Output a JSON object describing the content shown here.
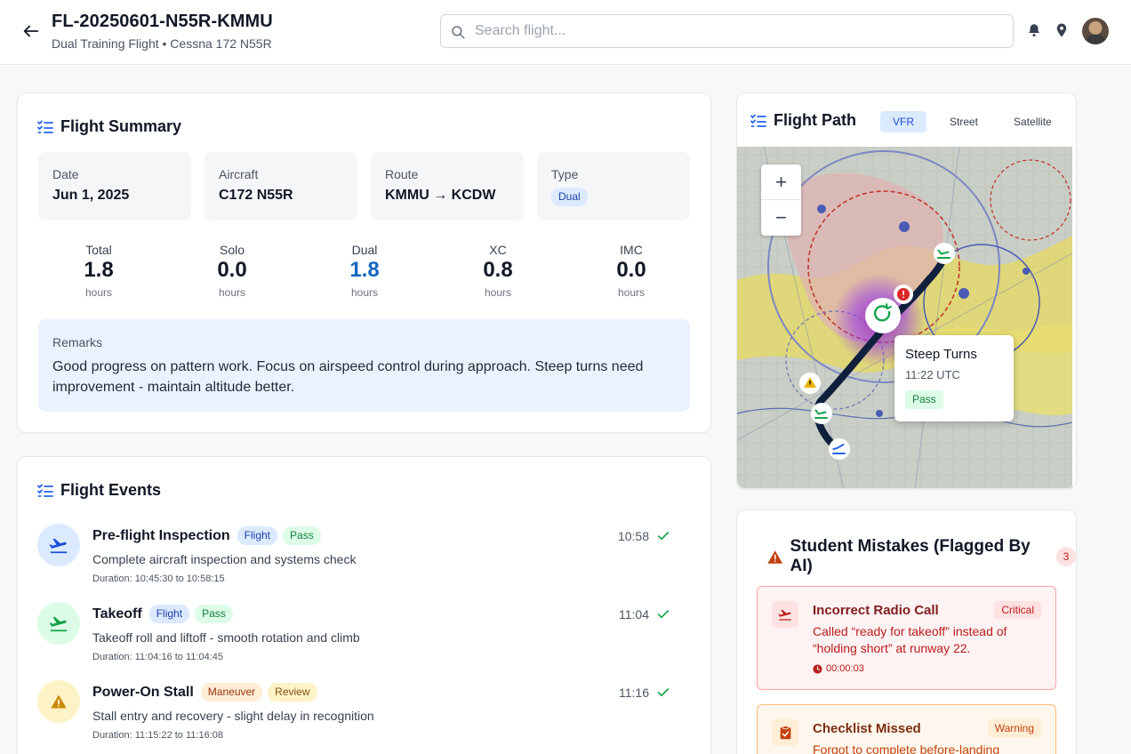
{
  "header": {
    "title": "FL-20250601-N55R-KMMU",
    "subtitle": "Dual Training Flight • Cessna 172 N55R",
    "search_placeholder": "Search flight..."
  },
  "summary": {
    "title": "Flight Summary",
    "info": [
      {
        "label": "Date",
        "value": "Jun 1, 2025"
      },
      {
        "label": "Aircraft",
        "value": "C172 N55R"
      },
      {
        "label": "Route",
        "value": "KMMU → KCDW"
      },
      {
        "label": "Type",
        "value": "Dual"
      }
    ],
    "stats": [
      {
        "label": "Total",
        "value": "1.8",
        "unit": "hours"
      },
      {
        "label": "Solo",
        "value": "0.0",
        "unit": "hours"
      },
      {
        "label": "Dual",
        "value": "1.8",
        "unit": "hours"
      },
      {
        "label": "XC",
        "value": "0.8",
        "unit": "hours"
      },
      {
        "label": "IMC",
        "value": "0.0",
        "unit": "hours"
      }
    ],
    "remarks_label": "Remarks",
    "remarks_text": "Good progress on pattern work. Focus on airspeed control during approach. Steep turns need improvement - maintain altitude better."
  },
  "events": {
    "title": "Flight Events",
    "items": [
      {
        "name": "Pre-flight Inspection",
        "category": "Flight",
        "result": "Pass",
        "description": "Complete aircraft inspection and systems check",
        "duration": "Duration: 10:45:30 to 10:58:15",
        "time": "10:58"
      },
      {
        "name": "Takeoff",
        "category": "Flight",
        "result": "Pass",
        "description": "Takeoff roll and liftoff - smooth rotation and climb",
        "duration": "Duration: 11:04:16 to 11:04:45",
        "time": "11:04"
      },
      {
        "name": "Power-On Stall",
        "category": "Maneuver",
        "result": "Review",
        "description": "Stall entry and recovery - slight delay in recognition",
        "duration": "Duration: 11:15:22 to 11:16:08",
        "time": "11:16"
      }
    ]
  },
  "map": {
    "title": "Flight Path",
    "tabs": [
      "VFR",
      "Street",
      "Satellite"
    ],
    "active_tab": "VFR",
    "zoom_in": "+",
    "zoom_out": "−",
    "popup": {
      "title": "Steep Turns",
      "time": "11:22 UTC",
      "result": "Pass"
    }
  },
  "mistakes": {
    "title": "Student Mistakes (Flagged By AI)",
    "count": "3",
    "items": [
      {
        "title": "Incorrect Radio Call",
        "severity": "Critical",
        "description": "Called “ready for takeoff” instead of “holding short” at runway 22.",
        "time": "00:00:03"
      },
      {
        "title": "Checklist Missed",
        "severity": "Warning",
        "description": "Forgot to complete before-landing"
      }
    ]
  },
  "colors": {
    "accent": "#1d4ed8",
    "dual_value": "#1565c0",
    "success": "#16a34a",
    "critical": "#b91c1c",
    "warning": "#c2410c"
  }
}
